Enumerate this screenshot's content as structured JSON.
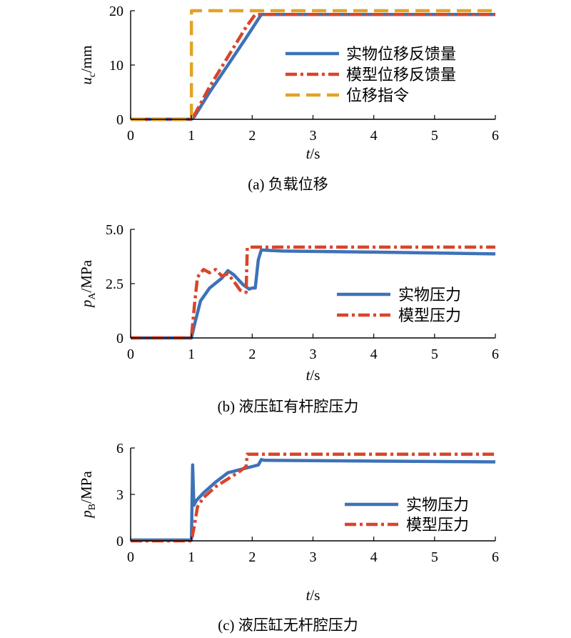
{
  "colors": {
    "blue": "#3d72b8",
    "red": "#d9452a",
    "gold": "#e2a326"
  },
  "chart_data": [
    {
      "type": "line",
      "caption": "(a) 负载位移",
      "xlabel": {
        "italic": "t",
        "rest": "/s"
      },
      "ylabel": {
        "italic": "u",
        "sub": "c",
        "rest": "/mm"
      },
      "xlim": [
        0,
        6
      ],
      "ylim": [
        0,
        20
      ],
      "xticks": [
        "0",
        "1",
        "2",
        "3",
        "4",
        "5",
        "6"
      ],
      "yticks": [
        {
          "v": 0,
          "label": "0"
        },
        {
          "v": 10,
          "label": "10"
        },
        {
          "v": 20,
          "label": "20"
        }
      ],
      "grid": false,
      "legend_position": "right",
      "series": [
        {
          "name": "实物位移反馈量",
          "color": "#3d72b8",
          "style": "solid",
          "x": [
            0,
            1.0,
            1.05,
            1.3,
            1.6,
            1.9,
            2.15,
            6
          ],
          "y": [
            0,
            0,
            0.5,
            5,
            10,
            15,
            19.3,
            19.3
          ]
        },
        {
          "name": "模型位移反馈量",
          "color": "#d9452a",
          "style": "dashdot",
          "x": [
            0,
            1.0,
            1.05,
            1.3,
            1.6,
            1.9,
            2.05,
            6
          ],
          "y": [
            0,
            0,
            0.8,
            6,
            11.5,
            17,
            19.3,
            19.3
          ]
        },
        {
          "name": "位移指令",
          "color": "#e2a326",
          "style": "dashed",
          "x": [
            0,
            1.0,
            1.0,
            6
          ],
          "y": [
            0,
            0,
            20,
            20
          ]
        }
      ]
    },
    {
      "type": "line",
      "caption": "(b) 液压缸有杆腔压力",
      "xlabel": {
        "italic": "t",
        "rest": "/s"
      },
      "ylabel": {
        "italic": "p",
        "sub": "A",
        "rest": "/MPa"
      },
      "xlim": [
        0,
        6
      ],
      "ylim": [
        0,
        5
      ],
      "xticks": [
        "0",
        "1",
        "2",
        "3",
        "4",
        "5",
        "6"
      ],
      "yticks": [
        {
          "v": 0,
          "label": "0"
        },
        {
          "v": 2.5,
          "label": "2.5"
        },
        {
          "v": 5,
          "label": "5.0"
        }
      ],
      "grid": false,
      "legend_position": "lower-right",
      "series": [
        {
          "name": "实物压力",
          "color": "#3d72b8",
          "style": "solid",
          "x": [
            0,
            1.0,
            1.05,
            1.15,
            1.3,
            1.5,
            1.6,
            1.7,
            1.85,
            1.95,
            2.0,
            2.05,
            2.1,
            2.15,
            2.5,
            4,
            6
          ],
          "y": [
            0,
            0,
            0.6,
            1.7,
            2.3,
            2.75,
            3.1,
            2.9,
            2.45,
            2.25,
            2.3,
            2.3,
            3.6,
            4.05,
            4.0,
            3.95,
            3.87
          ]
        },
        {
          "name": "模型压力",
          "color": "#d9452a",
          "style": "dashdot",
          "x": [
            0,
            1.0,
            1.05,
            1.1,
            1.2,
            1.3,
            1.4,
            1.5,
            1.6,
            1.7,
            1.8,
            1.9,
            1.92,
            1.95,
            6
          ],
          "y": [
            0,
            0,
            1.5,
            2.8,
            3.15,
            3.0,
            3.15,
            2.85,
            2.95,
            2.6,
            2.2,
            2.1,
            4.15,
            4.18,
            4.18
          ]
        }
      ]
    },
    {
      "type": "line",
      "caption": "(c) 液压缸无杆腔压力",
      "xlabel": {
        "italic": "t",
        "rest": "/s"
      },
      "ylabel": {
        "italic": "p",
        "sub": "B",
        "rest": "/MPa"
      },
      "xlim": [
        0,
        6
      ],
      "ylim": [
        0,
        6
      ],
      "xticks": [
        "0",
        "1",
        "2",
        "3",
        "4",
        "5",
        "6"
      ],
      "yticks": [
        {
          "v": 0,
          "label": "0"
        },
        {
          "v": 3,
          "label": "3"
        },
        {
          "v": 6,
          "label": "6"
        }
      ],
      "grid": false,
      "legend_position": "lower-right",
      "series": [
        {
          "name": "实物压力",
          "color": "#3d72b8",
          "style": "solid",
          "x": [
            0,
            1.0,
            1.02,
            1.04,
            1.08,
            1.2,
            1.4,
            1.6,
            1.8,
            2.0,
            2.1,
            2.15,
            2.2,
            4,
            6
          ],
          "y": [
            0.05,
            0.05,
            4.9,
            2.3,
            2.6,
            3.1,
            3.8,
            4.4,
            4.6,
            4.8,
            4.9,
            5.25,
            5.2,
            5.15,
            5.1
          ]
        },
        {
          "name": "模型压力",
          "color": "#d9452a",
          "style": "dashdot",
          "x": [
            0,
            1.0,
            1.05,
            1.1,
            1.2,
            1.4,
            1.6,
            1.8,
            1.9,
            1.92,
            1.95,
            6
          ],
          "y": [
            0,
            0,
            1.0,
            2.2,
            2.8,
            3.5,
            4.0,
            4.5,
            4.8,
            5.6,
            5.6,
            5.6
          ]
        }
      ]
    }
  ]
}
